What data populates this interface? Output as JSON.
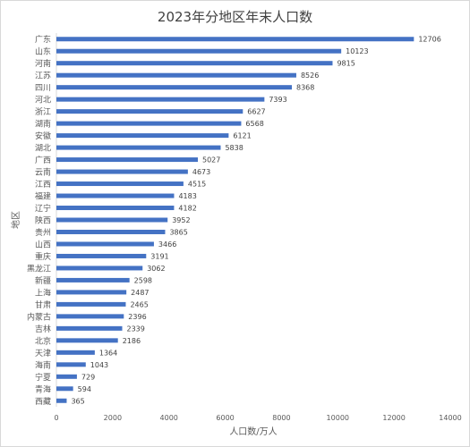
{
  "chart_data": {
    "type": "bar",
    "orientation": "horizontal",
    "title": "2023年分地区年末人口数",
    "xlabel": "人口数/万人",
    "ylabel": "地区",
    "xlim": [
      0,
      14000
    ],
    "xticks": [
      0,
      2000,
      4000,
      6000,
      8000,
      10000,
      12000,
      14000
    ],
    "grid": false,
    "bar_color": "#4472c4",
    "categories": [
      "广东",
      "山东",
      "河南",
      "江苏",
      "四川",
      "河北",
      "浙江",
      "湖南",
      "安徽",
      "湖北",
      "广西",
      "云南",
      "江西",
      "福建",
      "辽宁",
      "陕西",
      "贵州",
      "山西",
      "重庆",
      "黑龙江",
      "新疆",
      "上海",
      "甘肃",
      "内蒙古",
      "吉林",
      "北京",
      "天津",
      "海南",
      "宁夏",
      "青海",
      "西藏"
    ],
    "values": [
      12706,
      10123,
      9815,
      8526,
      8368,
      7393,
      6627,
      6568,
      6121,
      5838,
      5027,
      4673,
      4515,
      4183,
      4182,
      3952,
      3865,
      3466,
      3191,
      3062,
      2598,
      2487,
      2465,
      2396,
      2339,
      2186,
      1364,
      1043,
      729,
      594,
      365
    ],
    "data_labels": true
  }
}
